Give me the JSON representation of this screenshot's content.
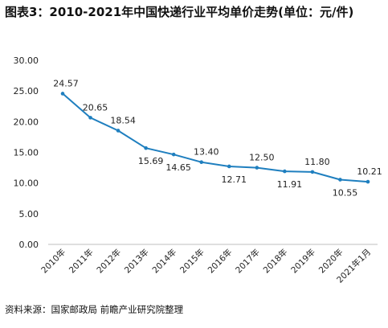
{
  "title": "图表3：2010-2021年中国快递行业平均单价走势(单位：元/件)",
  "source": "资料来源：国家邮政局 前瞻产业研究院整理",
  "chart_data": {
    "type": "line",
    "title": "图表3：2010-2021年中国快递行业平均单价走势(单位：元/件)",
    "xlabel": "",
    "ylabel": "",
    "categories": [
      "2010年",
      "2011年",
      "2012年",
      "2013年",
      "2014年",
      "2015年",
      "2016年",
      "2017年",
      "2018年",
      "2019年",
      "2020年",
      "2021年1月"
    ],
    "series": [
      {
        "values": [
          24.57,
          20.65,
          18.54,
          15.69,
          14.65,
          13.4,
          12.71,
          12.5,
          11.91,
          11.8,
          10.55,
          10.21
        ],
        "labels": [
          "24.57",
          "20.65",
          "18.54",
          "15.69",
          "14.65",
          "13.40",
          "12.71",
          "12.50",
          "11.91",
          "11.80",
          "10.55",
          "10.21"
        ],
        "color": "#1f7fbf"
      }
    ],
    "yticks": [
      "0.00",
      "5.00",
      "10.00",
      "15.00",
      "20.00",
      "25.00",
      "30.00"
    ],
    "ylim": [
      0,
      30
    ],
    "grid": false,
    "legend": "none"
  }
}
